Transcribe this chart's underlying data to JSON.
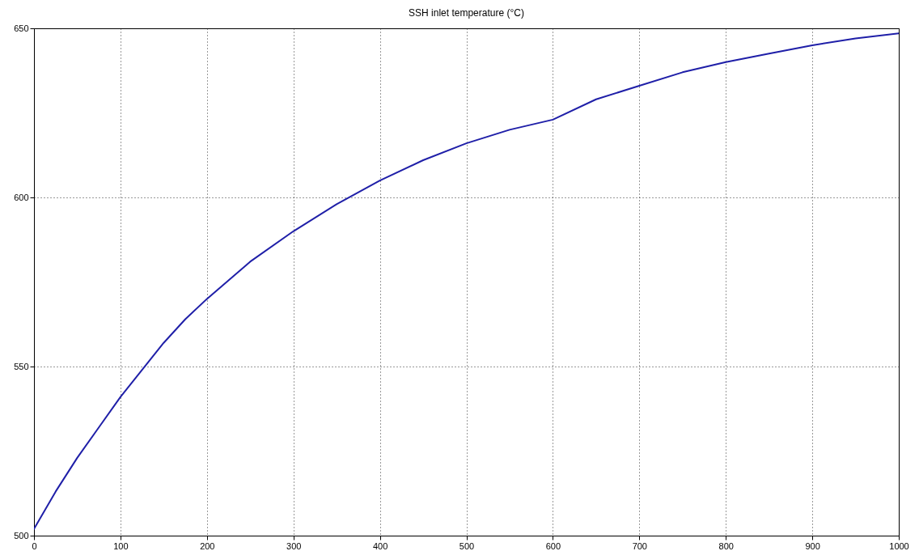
{
  "chart_data": {
    "type": "line",
    "title": "SSH inlet temperature (°C)",
    "x": [
      0,
      25,
      50,
      75,
      100,
      125,
      150,
      175,
      200,
      250,
      300,
      350,
      400,
      450,
      500,
      550,
      600,
      650,
      700,
      750,
      800,
      850,
      900,
      950,
      1000
    ],
    "series": [
      {
        "color": "#1f1fa8",
        "values": [
          502,
          513,
          523,
          532,
          541,
          549,
          557,
          564,
          570,
          581,
          590,
          598,
          605,
          611,
          616,
          620,
          623,
          629,
          633,
          637,
          640,
          642.5,
          645,
          647,
          648.5
        ]
      }
    ],
    "xlim": [
      0,
      1000
    ],
    "xticks": [
      0,
      100,
      200,
      300,
      400,
      500,
      600,
      700,
      800,
      900,
      1000
    ],
    "ylim": [
      500,
      650
    ],
    "yticks": [
      500,
      550,
      600,
      650
    ],
    "grid": true,
    "line_style": "solid",
    "marker": "none"
  }
}
